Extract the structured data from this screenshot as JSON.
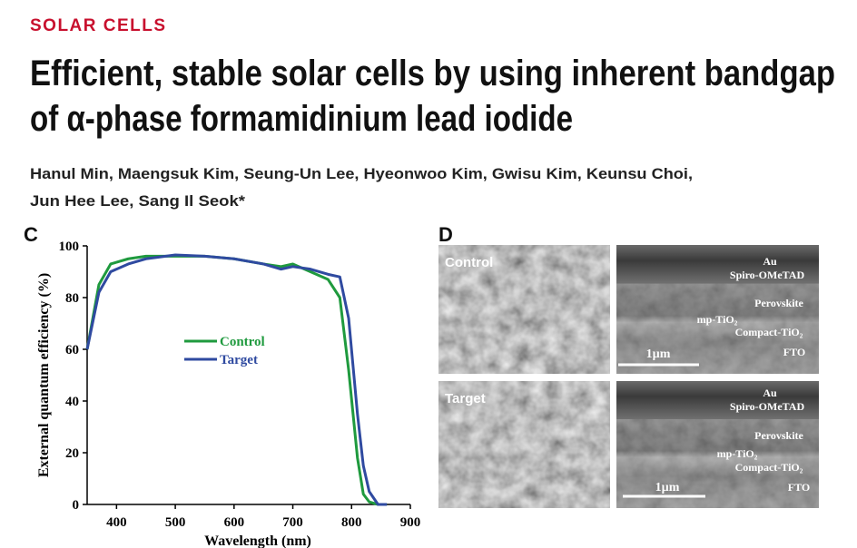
{
  "section": "SOLAR CELLS",
  "title_lines": [
    "Efficient, stable solar cells by using inherent bandgap",
    "of α-phase formamidinium lead iodide"
  ],
  "author_lines": [
    "Hanul Min, Maengsuk Kim, Seung-Un Lee, Hyeonwoo Kim, Gwisu Kim, Keunsu Choi,",
    "Jun Hee Lee, Sang Il Seok*"
  ],
  "chart_data": {
    "type": "line",
    "panel": "C",
    "x_label": "Wavelength (nm)",
    "y_label": "External quantum efficiency (%)",
    "x": [
      350,
      370,
      390,
      420,
      450,
      500,
      550,
      600,
      650,
      680,
      700,
      730,
      760,
      780,
      795,
      810,
      820,
      830,
      845,
      860
    ],
    "series": [
      {
        "name": "Control",
        "color": "#1f9a3e",
        "values": [
          60,
          85,
          93,
          95,
          96,
          96,
          96,
          95,
          93,
          92,
          93,
          90,
          87,
          80,
          52,
          18,
          4,
          1,
          0,
          0
        ]
      },
      {
        "name": "Target",
        "color": "#2f4aa0",
        "values": [
          60,
          82,
          90,
          93,
          95,
          96.5,
          96,
          95,
          93,
          91,
          92,
          91,
          89,
          88,
          72,
          35,
          15,
          5,
          0,
          0
        ]
      }
    ],
    "xlim": [
      350,
      900
    ],
    "ylim": [
      0,
      100
    ],
    "xticks": [
      400,
      500,
      600,
      700,
      800,
      900
    ],
    "yticks": [
      0,
      20,
      40,
      60,
      80,
      100
    ],
    "grid": false,
    "legend": "center"
  },
  "figure_d": {
    "panel": "D",
    "rows": [
      {
        "label": "Control",
        "layers": [
          "Au",
          "Spiro-OMeTAD",
          "Perovskite",
          "mp-TiO₂",
          "Compact-TiO₂",
          "FTO"
        ],
        "scale_bar": "1µm"
      },
      {
        "label": "Target",
        "layers": [
          "Au",
          "Spiro-OMeTAD",
          "Perovskite",
          "mp-TiO₂",
          "Compact-TiO₂",
          "FTO"
        ],
        "scale_bar": "1µm"
      }
    ]
  }
}
